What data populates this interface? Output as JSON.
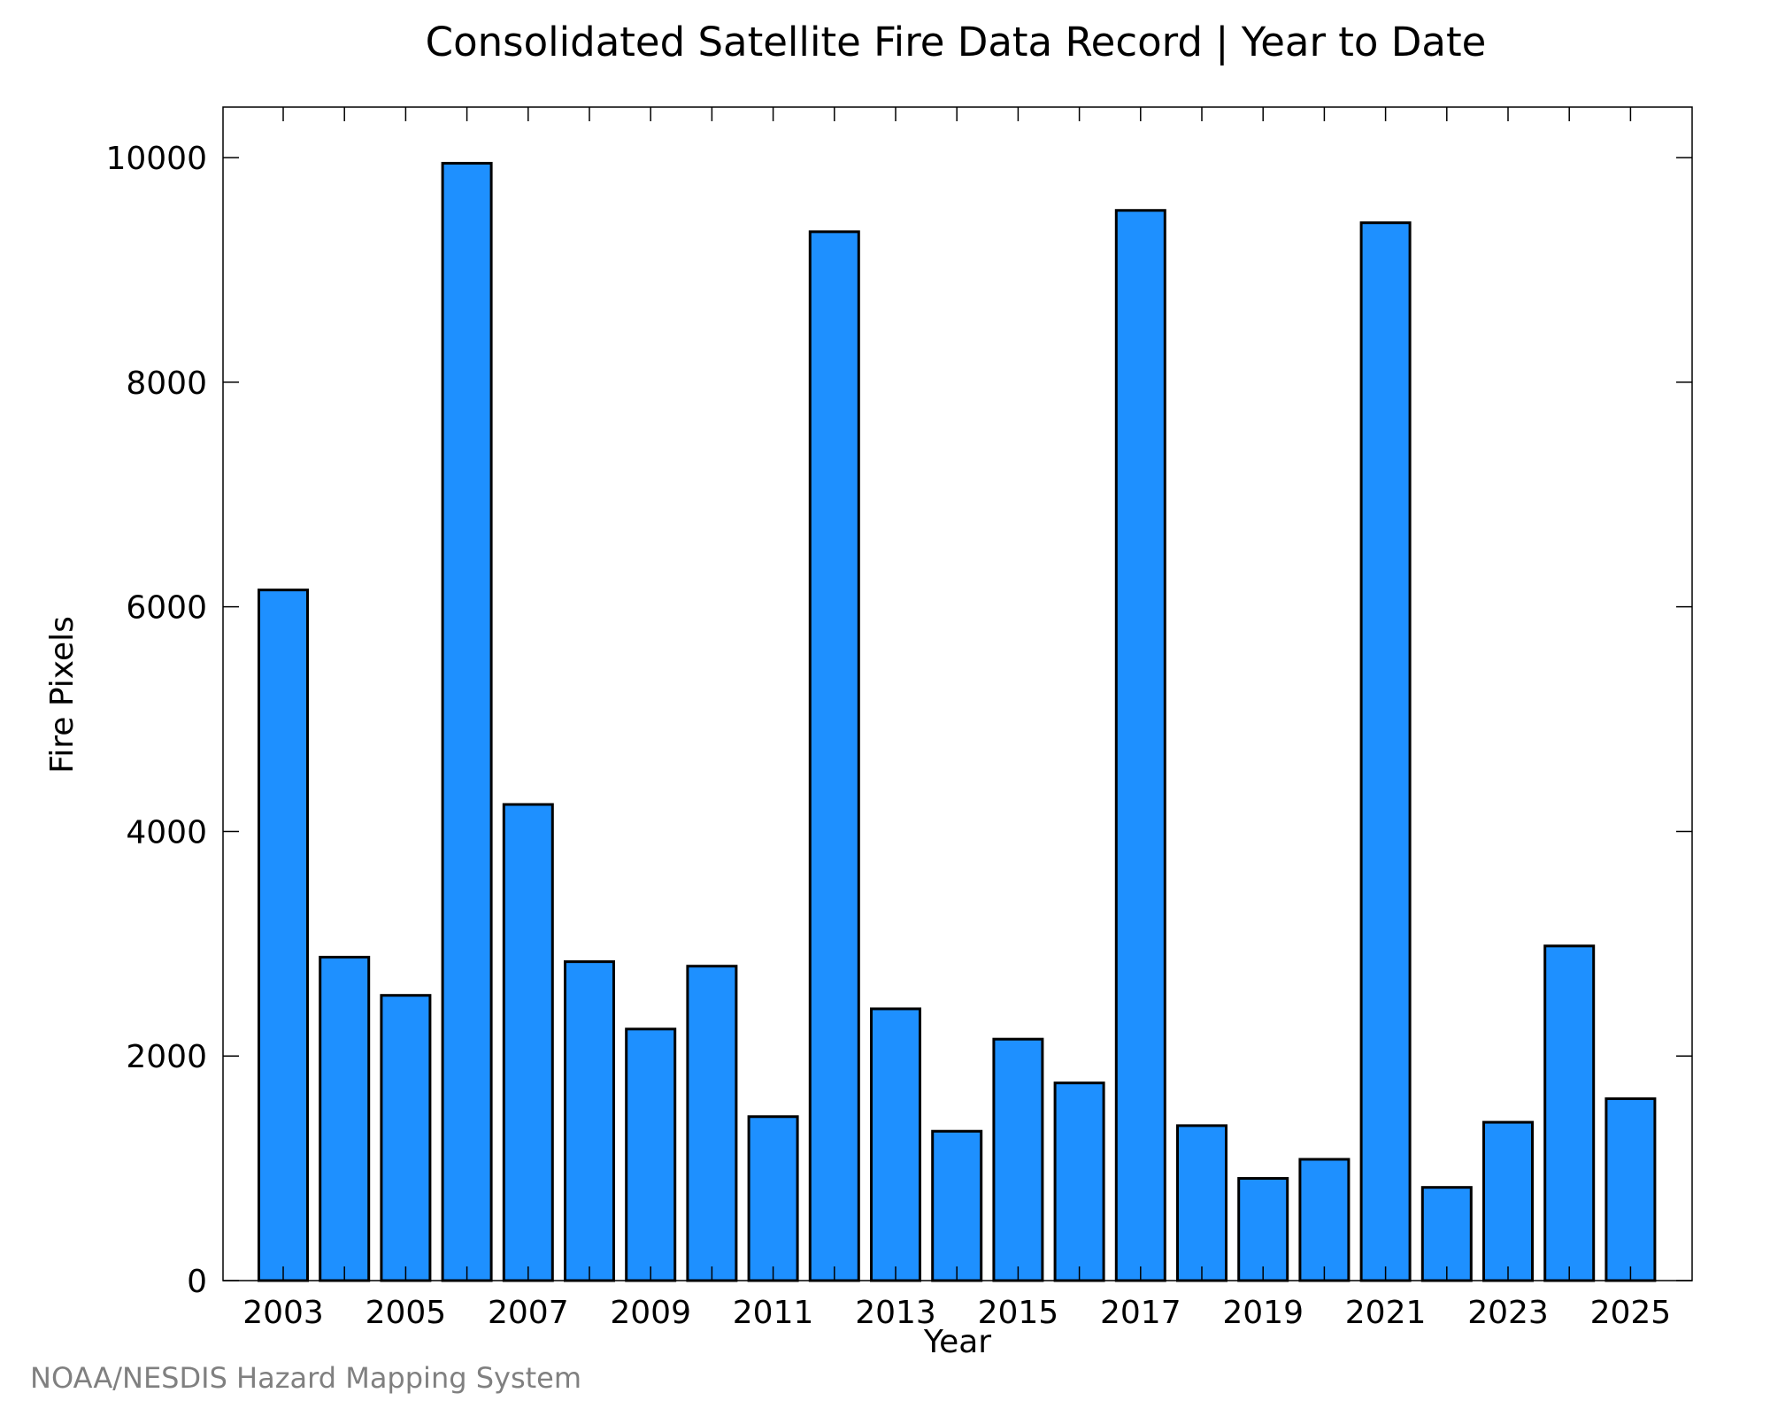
{
  "chart_data": {
    "type": "bar",
    "title": "Consolidated Satellite Fire Data Record | Year to Date",
    "xlabel": "Year",
    "ylabel": "Fire Pixels",
    "categories": [
      "2003",
      "2004",
      "2005",
      "2006",
      "2007",
      "2008",
      "2009",
      "2010",
      "2011",
      "2012",
      "2013",
      "2014",
      "2015",
      "2016",
      "2017",
      "2018",
      "2019",
      "2020",
      "2021",
      "2022",
      "2023",
      "2024",
      "2025"
    ],
    "values": [
      6150,
      2880,
      2540,
      9950,
      4240,
      2840,
      2240,
      2800,
      1460,
      9340,
      2420,
      1330,
      2150,
      1760,
      9530,
      1380,
      910,
      1080,
      9420,
      830,
      1410,
      2980,
      1620
    ],
    "x_tick_labels": [
      "2003",
      "2005",
      "2007",
      "2009",
      "2011",
      "2013",
      "2015",
      "2017",
      "2019",
      "2021",
      "2023",
      "2025"
    ],
    "y_ticks": [
      0,
      2000,
      4000,
      6000,
      8000,
      10000
    ],
    "y_tick_labels": [
      "0",
      "2000",
      "4000",
      "6000",
      "8000",
      "10000"
    ],
    "ylim": [
      0,
      10450
    ],
    "grid": false,
    "bar_color": "#1e90ff",
    "edge_color": "#000000"
  },
  "credit": "NOAA/NESDIS Hazard Mapping System"
}
